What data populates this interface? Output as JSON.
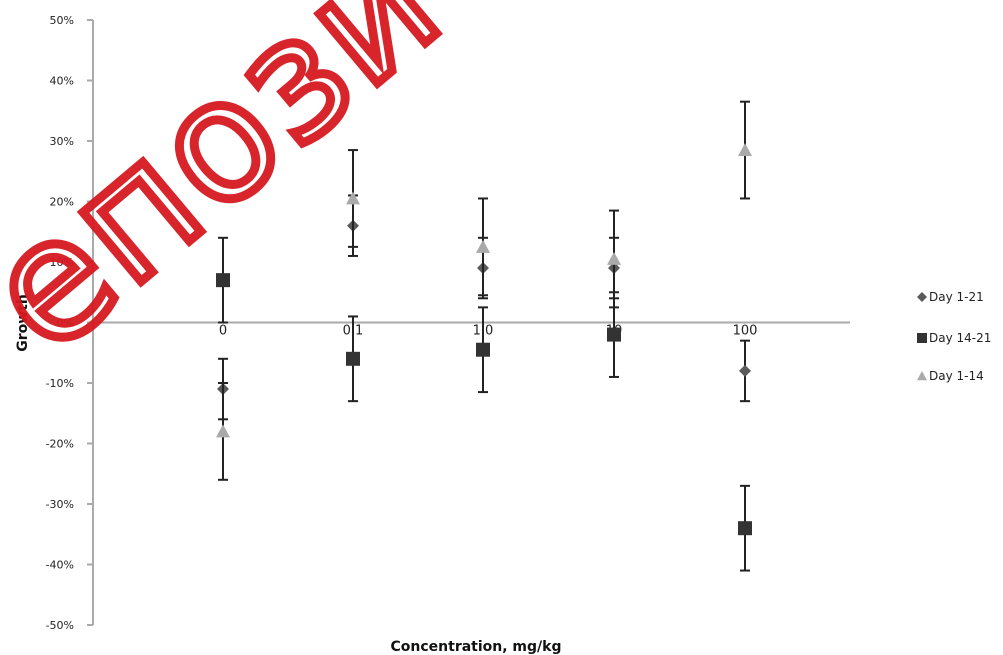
{
  "chart_data": {
    "type": "scatter",
    "title": "",
    "xlabel": "Concentration, mg/kg",
    "ylabel": "Growth",
    "categories": [
      "0",
      "0.1",
      "1.0",
      "10",
      "100"
    ],
    "x_tick_labels": [
      "0",
      "0.1",
      "1.0",
      "10",
      "100"
    ],
    "y_tick_labels": [
      "50%",
      "40%",
      "30%",
      "20%",
      "10%",
      "0%",
      "-10%",
      "-20%",
      "-30%",
      "-40%",
      "-50%"
    ],
    "ylim": [
      -50,
      50
    ],
    "y_unit": "%",
    "grid": false,
    "legend_position": "right",
    "series": [
      {
        "name": "Day 1-21",
        "marker": "diamond",
        "color": "#5a5a5a",
        "values": [
          -11,
          16,
          9,
          9,
          -8
        ],
        "errors": [
          5,
          5,
          5,
          5,
          5
        ]
      },
      {
        "name": "Day 14-21",
        "marker": "square",
        "color": "#333333",
        "values": [
          7,
          -6,
          -4.5,
          -2,
          -34
        ],
        "errors": [
          7,
          7,
          7,
          7,
          7
        ]
      },
      {
        "name": "Day 1-14",
        "marker": "triangle",
        "color": "#aaaaaa",
        "values": [
          -18,
          20.5,
          12.5,
          10.5,
          28.5
        ],
        "errors": [
          8,
          8,
          8,
          8,
          8
        ]
      }
    ]
  },
  "watermark": {
    "text": "епози"
  }
}
